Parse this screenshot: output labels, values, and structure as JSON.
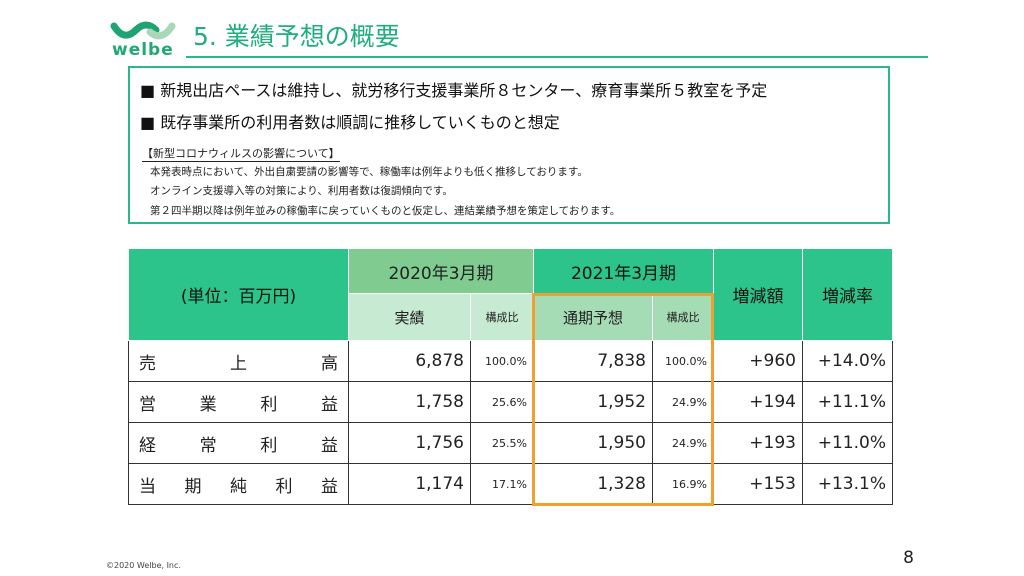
{
  "header": {
    "logo_text": "welbe",
    "title": "5. 業績予想の概要"
  },
  "summary": {
    "bullets": [
      "■ 新規出店ペースは維持し、就労移行支援事業所８センター、療育事業所５教室を予定",
      "■ 既存事業所の利用者数は順調に推移していくものと想定"
    ],
    "note_heading": "【新型コロナウィルスの影響について】",
    "notes": [
      "本発表時点において、外出自粛要請の影響等で、稼働率は例年よりも低く推移しております。",
      "オンライン支援導入等の対策により、利用者数は復調傾向です。",
      "第２四半期以降は例年並みの稼働率に戻っていくものと仮定し、連結業績予想を策定しております。"
    ]
  },
  "table": {
    "unit": "(単位：百万円)",
    "fy2020": "2020年3月期",
    "fy2021": "2021年3月期",
    "actual": "実績",
    "ratio": "構成比",
    "forecast": "通期予想",
    "diff": "増減額",
    "rate": "増減率",
    "rows": [
      {
        "label": [
          "売",
          "上",
          "高"
        ],
        "actual": "6,878",
        "actual_ratio": "100.0%",
        "forecast": "7,838",
        "forecast_ratio": "100.0%",
        "diff": "+960",
        "rate": "+14.0%"
      },
      {
        "label": [
          "営",
          "業",
          "利",
          "益"
        ],
        "actual": "1,758",
        "actual_ratio": "25.6%",
        "forecast": "1,952",
        "forecast_ratio": "24.9%",
        "diff": "+194",
        "rate": "+11.1%"
      },
      {
        "label": [
          "経",
          "常",
          "利",
          "益"
        ],
        "actual": "1,756",
        "actual_ratio": "25.5%",
        "forecast": "1,950",
        "forecast_ratio": "24.9%",
        "diff": "+193",
        "rate": "+11.0%"
      },
      {
        "label": [
          "当",
          "期",
          "純",
          "利",
          "益"
        ],
        "actual": "1,174",
        "actual_ratio": "17.1%",
        "forecast": "1,328",
        "forecast_ratio": "16.9%",
        "diff": "+153",
        "rate": "+13.1%"
      }
    ]
  },
  "footer": {
    "copyright": "©2020 Welbe, Inc.",
    "page": "8"
  }
}
